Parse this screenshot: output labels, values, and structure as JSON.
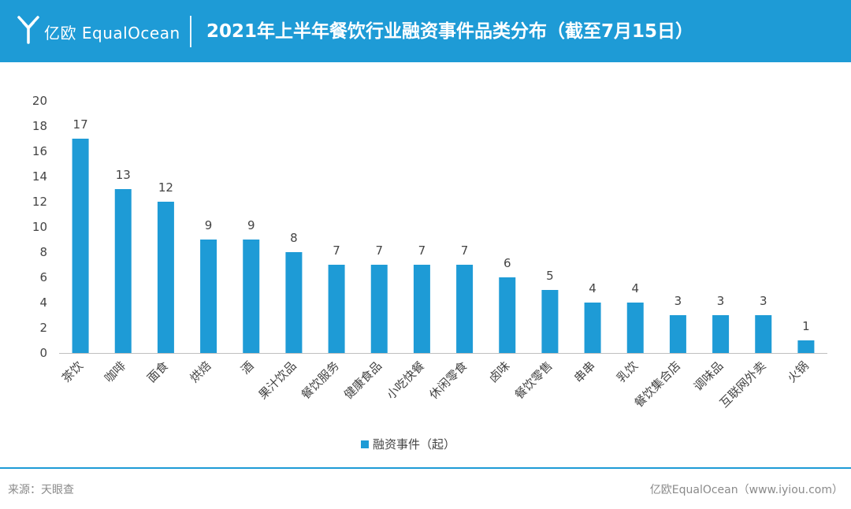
{
  "header": {
    "brand": "亿欧 EqualOcean",
    "title": "2021年上半年餐饮行业融资事件品类分布（截至7月15日）"
  },
  "colors": {
    "header_bg": "#1e9bd6",
    "bar": "#1e9bd6",
    "axis_text": "#444444",
    "footer_text": "#8a8a8a"
  },
  "chart_data": {
    "type": "bar",
    "categories": [
      "茶饮",
      "咖啡",
      "面食",
      "烘焙",
      "酒",
      "果汁饮品",
      "餐饮服务",
      "健康食品",
      "小吃快餐",
      "休闲零食",
      "卤味",
      "餐饮零售",
      "串串",
      "乳饮",
      "餐饮集合店",
      "调味品",
      "互联网外卖",
      "火锅"
    ],
    "series": [
      {
        "name": "融资事件（起）",
        "values": [
          17,
          13,
          12,
          9,
          9,
          8,
          7,
          7,
          7,
          7,
          6,
          5,
          4,
          4,
          3,
          3,
          3,
          1
        ]
      }
    ],
    "yticks": [
      0,
      2,
      4,
      6,
      8,
      10,
      12,
      14,
      16,
      18,
      20
    ],
    "ylim": [
      0,
      20
    ],
    "grid": false,
    "data_labels": true,
    "legend_position": "bottom-center"
  },
  "footer": {
    "source": "来源：天眼查",
    "credit": "亿欧EqualOcean（www.iyiou.com）"
  }
}
